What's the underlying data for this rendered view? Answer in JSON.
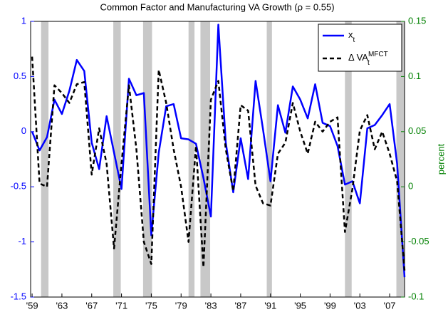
{
  "chart_data": {
    "type": "line",
    "title": "Common Factor and Manufacturing VA Growth (ρ = 0.55)",
    "y2label": "percent",
    "x": [
      1959,
      1960,
      1961,
      1962,
      1963,
      1964,
      1965,
      1966,
      1967,
      1968,
      1969,
      1970,
      1971,
      1972,
      1973,
      1974,
      1975,
      1976,
      1977,
      1978,
      1979,
      1980,
      1981,
      1982,
      1983,
      1984,
      1985,
      1986,
      1987,
      1988,
      1989,
      1990,
      1991,
      1992,
      1993,
      1994,
      1995,
      1996,
      1997,
      1998,
      1999,
      2000,
      2001,
      2002,
      2003,
      2004,
      2005,
      2006,
      2007,
      2008,
      2009
    ],
    "series": [
      {
        "name": "x",
        "name_subscript": "t",
        "color": "#0000ff",
        "axis": "y",
        "values": [
          0,
          -0.17,
          -0.05,
          0.29,
          0.16,
          0.37,
          0.65,
          0.55,
          -0.1,
          -0.34,
          0.14,
          -0.19,
          -0.52,
          0.48,
          0.33,
          0.35,
          -0.94,
          -0.19,
          0.23,
          0.25,
          -0.06,
          -0.07,
          -0.11,
          -0.42,
          -0.77,
          0.97,
          -0.1,
          -0.55,
          -0.06,
          -0.43,
          0.46,
          0.02,
          -0.45,
          0.24,
          -0.01,
          0.41,
          0.29,
          0.12,
          0.43,
          0.08,
          0.05,
          -0.13,
          -0.48,
          -0.45,
          -0.65,
          0.03,
          0.06,
          0.15,
          0.25,
          -0.29,
          -1.32
        ]
      },
      {
        "name": "Δ VA",
        "name_subscript": "t",
        "name_superscript": "MFCT",
        "color": "#000000",
        "axis": "y2",
        "values": [
          0.118,
          0.003,
          0,
          0.092,
          0.085,
          0.076,
          0.093,
          0.095,
          0.011,
          0.053,
          0.021,
          -0.056,
          0.021,
          0.092,
          0.034,
          -0.05,
          -0.07,
          0.106,
          0.076,
          0.034,
          0,
          -0.05,
          0.037,
          -0.073,
          0.079,
          0.096,
          0.034,
          -0.004,
          0.074,
          0.069,
          0.001,
          -0.015,
          -0.017,
          0.03,
          0.04,
          0.076,
          0.05,
          0.03,
          0.059,
          0.05,
          0.059,
          0.063,
          -0.041,
          -0.002,
          0.051,
          0.065,
          0.034,
          0.05,
          0.03,
          0.005,
          -0.076
        ]
      }
    ],
    "xlim": [
      1958.8,
      2009
    ],
    "xticks": [
      {
        "value": 1959,
        "label": "'59"
      },
      {
        "value": 1963,
        "label": "'63"
      },
      {
        "value": 1967,
        "label": "'67"
      },
      {
        "value": 1971,
        "label": "'71"
      },
      {
        "value": 1975,
        "label": "'75"
      },
      {
        "value": 1979,
        "label": "'79"
      },
      {
        "value": 1983,
        "label": "'83"
      },
      {
        "value": 1987,
        "label": "'87"
      },
      {
        "value": 1991,
        "label": "'91"
      },
      {
        "value": 1995,
        "label": "'95"
      },
      {
        "value": 1999,
        "label": "'99"
      },
      {
        "value": 2003,
        "label": "'03"
      },
      {
        "value": 2007,
        "label": "'07"
      }
    ],
    "ylim": [
      -1.5,
      1
    ],
    "yticks": [
      -1.5,
      -1,
      -0.5,
      0,
      0.5,
      1
    ],
    "ycolor": "#0000ff",
    "y2lim": [
      -0.1,
      0.15
    ],
    "y2ticks": [
      -0.1,
      -0.05,
      0,
      0.05,
      0.1,
      0.15
    ],
    "y2color": "#008000",
    "shaded_regions": [
      {
        "start": 1960.2,
        "end": 1961.2
      },
      {
        "start": 1969.9,
        "end": 1970.9
      },
      {
        "start": 1973.9,
        "end": 1975.1
      },
      {
        "start": 1980.0,
        "end": 1980.8
      },
      {
        "start": 1981.6,
        "end": 1982.9
      },
      {
        "start": 1990.5,
        "end": 1991.2
      },
      {
        "start": 2001.0,
        "end": 2001.9
      },
      {
        "start": 2007.9,
        "end": 2009.0
      }
    ],
    "shade_color": "#c8c8c8",
    "legend": "upper right"
  }
}
